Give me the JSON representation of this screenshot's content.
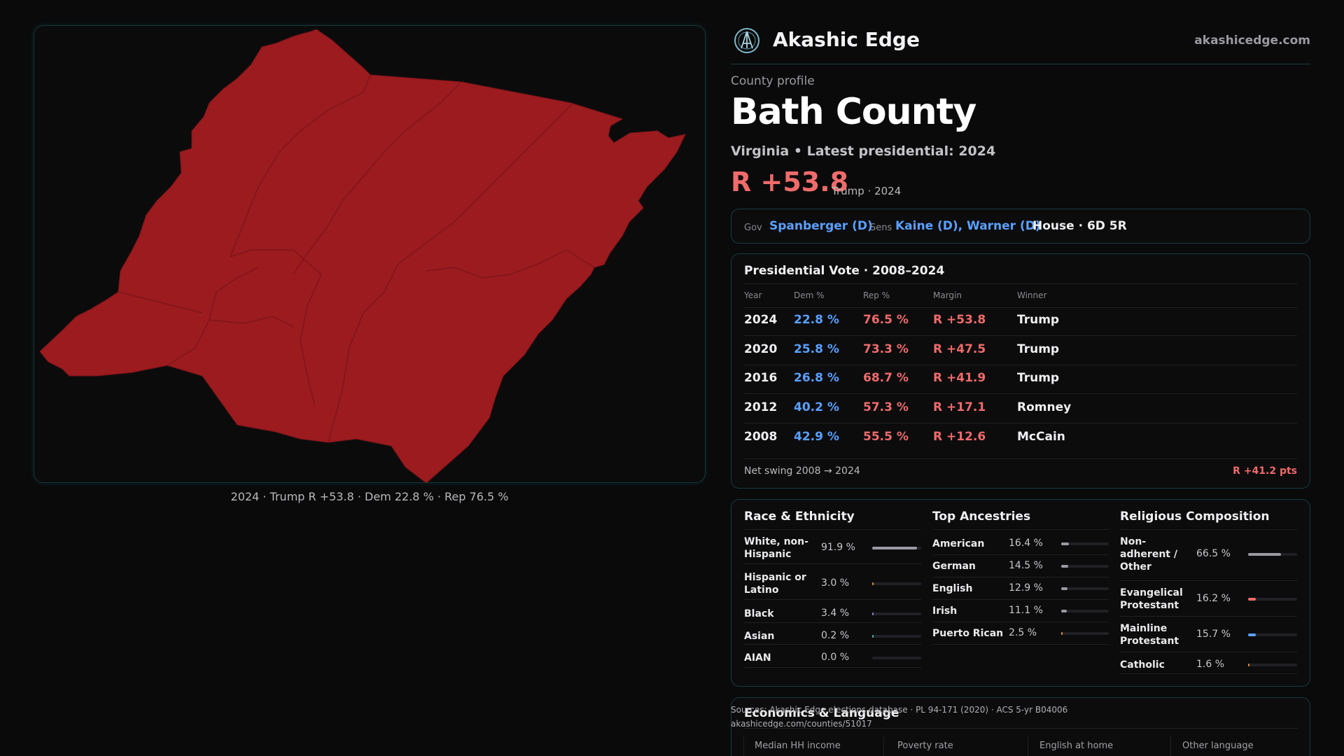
{
  "map": {
    "caption": "2024 · Trump R +53.8 · Dem 22.8 % · Rep 76.5 %",
    "fill_color": "#9b1b1f",
    "border_color": "#0c8a9a"
  },
  "brand": {
    "name": "Akashic Edge",
    "url": "akashicedge.com",
    "logo_icon": "akashic-logo-icon"
  },
  "profile": {
    "label": "County profile",
    "title": "Bath County",
    "subtitle": "Virginia • Latest presidential: 2024",
    "margin": "R +53.8",
    "margin_note": "Trump · 2024"
  },
  "officials": {
    "gov_label": "Gov",
    "gov": "Spanberger (D)",
    "sens_label": "Sens",
    "sens": "Kaine (D), Warner (D)",
    "house": "House · 6D 5R"
  },
  "presidential": {
    "title": "Presidential Vote · 2008–2024",
    "headers": [
      "Year",
      "Dem %",
      "Rep %",
      "Margin",
      "Winner"
    ],
    "rows": [
      {
        "year": "2024",
        "dem": "22.8 %",
        "rep": "76.5 %",
        "margin": "R +53.8",
        "winner": "Trump"
      },
      {
        "year": "2020",
        "dem": "25.8 %",
        "rep": "73.3 %",
        "margin": "R +47.5",
        "winner": "Trump"
      },
      {
        "year": "2016",
        "dem": "26.8 %",
        "rep": "68.7 %",
        "margin": "R +41.9",
        "winner": "Trump"
      },
      {
        "year": "2012",
        "dem": "40.2 %",
        "rep": "57.3 %",
        "margin": "R +17.1",
        "winner": "Romney"
      },
      {
        "year": "2008",
        "dem": "42.9 %",
        "rep": "55.5 %",
        "margin": "R +12.6",
        "winner": "McCain"
      }
    ],
    "swing_label": "Net swing 2008 → 2024",
    "swing_value": "R +41.2 pts"
  },
  "race": {
    "title": "Race & Ethnicity",
    "items": [
      {
        "label": "White, non-\nHispanic",
        "value": "91.9 %",
        "fraction": 0.919,
        "color": "#9a9aa2"
      },
      {
        "label": "Hispanic or\nLatino",
        "value": "3.0 %",
        "fraction": 0.03,
        "color": "#e38a2e"
      },
      {
        "label": "Black",
        "value": "3.4 %",
        "fraction": 0.034,
        "color": "#8f7ce0"
      },
      {
        "label": "Asian",
        "value": "0.2 %",
        "fraction": 0.002,
        "color": "#4fb0a0"
      },
      {
        "label": "AIAN",
        "value": "0.0 %",
        "fraction": 0.0,
        "color": "#c9a34a"
      }
    ]
  },
  "ancestry": {
    "title": "Top Ancestries",
    "items": [
      {
        "label": "American",
        "value": "16.4 %",
        "fraction": 0.164,
        "color": "#9a9aa2"
      },
      {
        "label": "German",
        "value": "14.5 %",
        "fraction": 0.145,
        "color": "#9a9aa2"
      },
      {
        "label": "English",
        "value": "12.9 %",
        "fraction": 0.129,
        "color": "#9a9aa2"
      },
      {
        "label": "Irish",
        "value": "11.1 %",
        "fraction": 0.111,
        "color": "#9a9aa2"
      },
      {
        "label": "Puerto Rican",
        "value": "2.5 %",
        "fraction": 0.025,
        "color": "#e38a2e"
      }
    ]
  },
  "religion": {
    "title": "Religious Composition",
    "items": [
      {
        "label": "Non-\nadherent /\nOther",
        "value": "66.5 %",
        "fraction": 0.665,
        "color": "#9a9aa2"
      },
      {
        "label": "Evangelical\nProtestant",
        "value": "16.2 %",
        "fraction": 0.162,
        "color": "#f06b6b"
      },
      {
        "label": "Mainline\nProtestant",
        "value": "15.7 %",
        "fraction": 0.157,
        "color": "#5aa0ff"
      },
      {
        "label": "Catholic",
        "value": "1.6 %",
        "fraction": 0.016,
        "color": "#e38a2e"
      }
    ]
  },
  "economics": {
    "title": "Economics & Language",
    "headers": [
      "Median HH income",
      "Poverty rate",
      "English at home",
      "Other language"
    ]
  },
  "sources": {
    "line1": "Sources: Akashic Edge elections database · PL 94-171 (2020) · ACS 5-yr B04006",
    "line2": "akashicedge.com/counties/51017"
  }
}
